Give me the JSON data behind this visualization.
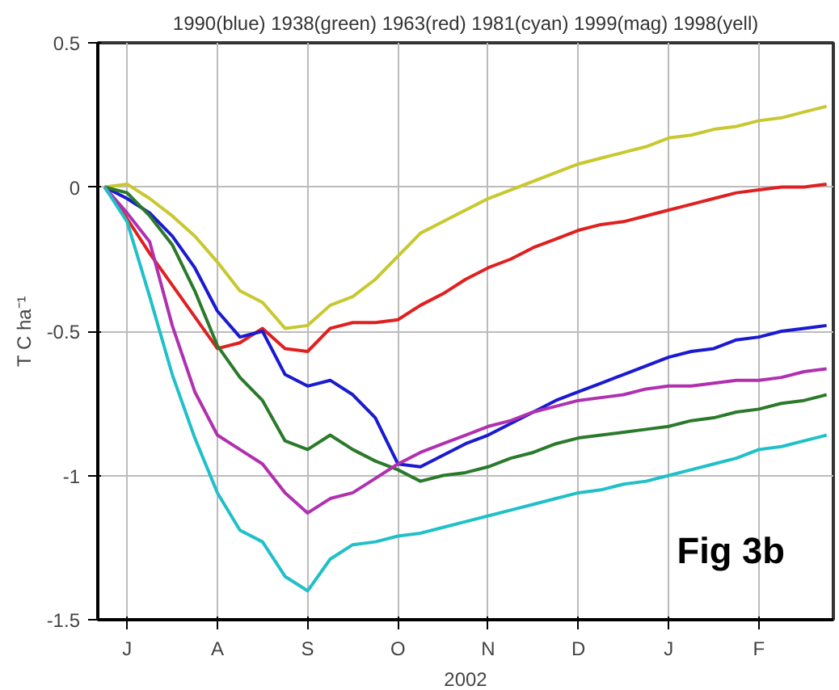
{
  "chart_data": {
    "type": "line",
    "title": "1990(blue) 1938(green) 1963(red) 1981(cyan) 1999(mag) 1998(yell)",
    "ylabel": "T C ha⁻¹",
    "xlabel": "2002",
    "categories": [
      null,
      "J",
      null,
      null,
      null,
      "A",
      null,
      null,
      null,
      "S",
      null,
      null,
      null,
      "O",
      null,
      null,
      null,
      "N",
      null,
      null,
      null,
      "D",
      null,
      null,
      null,
      "J",
      null,
      null,
      null,
      "F",
      null,
      null,
      null
    ],
    "ylim": [
      -1.5,
      0.5
    ],
    "yticks": [
      0.5,
      0,
      -0.5,
      -1,
      -1.5
    ],
    "grid": true,
    "annotations": [
      "Fig 3b"
    ],
    "series": [
      {
        "color": "#c8c830",
        "values": [
          0,
          0.01,
          -0.04,
          -0.1,
          -0.17,
          -0.26,
          -0.36,
          -0.4,
          -0.49,
          -0.48,
          -0.41,
          -0.38,
          -0.32,
          -0.24,
          -0.16,
          -0.12,
          -0.08,
          -0.04,
          -0.01,
          0.02,
          0.05,
          0.08,
          0.1,
          0.12,
          0.14,
          0.17,
          0.18,
          0.2,
          0.21,
          0.23,
          0.24,
          0.26,
          0.28
        ]
      },
      {
        "color": "#e02020",
        "values": [
          0,
          -0.11,
          -0.23,
          -0.34,
          -0.45,
          -0.56,
          -0.54,
          -0.49,
          -0.56,
          -0.57,
          -0.49,
          -0.47,
          -0.47,
          -0.46,
          -0.41,
          -0.37,
          -0.32,
          -0.28,
          -0.25,
          -0.21,
          -0.18,
          -0.15,
          -0.13,
          -0.12,
          -0.1,
          -0.08,
          -0.06,
          -0.04,
          -0.02,
          -0.01,
          0,
          0,
          0.01
        ]
      },
      {
        "color": "#1a1ad0",
        "values": [
          0,
          -0.04,
          -0.09,
          -0.17,
          -0.28,
          -0.43,
          -0.52,
          -0.5,
          -0.65,
          -0.69,
          -0.67,
          -0.72,
          -0.8,
          -0.96,
          -0.97,
          -0.93,
          -0.89,
          -0.86,
          -0.82,
          -0.78,
          -0.74,
          -0.71,
          -0.68,
          -0.65,
          -0.62,
          -0.59,
          -0.57,
          -0.56,
          -0.53,
          -0.52,
          -0.5,
          -0.49,
          -0.48
        ]
      },
      {
        "color": "#2a7a2a",
        "values": [
          0,
          -0.02,
          -0.1,
          -0.2,
          -0.36,
          -0.55,
          -0.66,
          -0.74,
          -0.88,
          -0.91,
          -0.86,
          -0.91,
          -0.95,
          -0.98,
          -1.02,
          -1.0,
          -0.99,
          -0.97,
          -0.94,
          -0.92,
          -0.89,
          -0.87,
          -0.86,
          -0.85,
          -0.84,
          -0.83,
          -0.81,
          -0.8,
          -0.78,
          -0.77,
          -0.75,
          -0.74,
          -0.72
        ]
      },
      {
        "color": "#b030b0",
        "values": [
          0,
          -0.09,
          -0.19,
          -0.48,
          -0.71,
          -0.86,
          -0.91,
          -0.96,
          -1.06,
          -1.13,
          -1.08,
          -1.06,
          -1.01,
          -0.96,
          -0.92,
          -0.89,
          -0.86,
          -0.83,
          -0.81,
          -0.78,
          -0.76,
          -0.74,
          -0.73,
          -0.72,
          -0.7,
          -0.69,
          -0.69,
          -0.68,
          -0.67,
          -0.67,
          -0.66,
          -0.64,
          -0.63
        ]
      },
      {
        "color": "#20c0c8",
        "values": [
          0,
          -0.12,
          -0.38,
          -0.65,
          -0.87,
          -1.06,
          -1.19,
          -1.23,
          -1.35,
          -1.4,
          -1.29,
          -1.24,
          -1.23,
          -1.21,
          -1.2,
          -1.18,
          -1.16,
          -1.14,
          -1.12,
          -1.1,
          -1.08,
          -1.06,
          -1.05,
          -1.03,
          -1.02,
          -1.0,
          -0.98,
          -0.96,
          -0.94,
          -0.91,
          -0.9,
          -0.88,
          -0.86
        ]
      }
    ]
  }
}
